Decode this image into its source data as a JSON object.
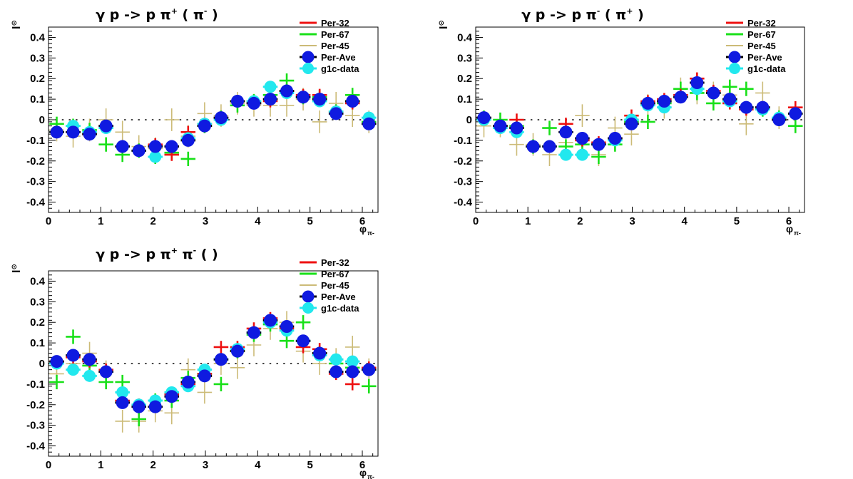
{
  "colors": {
    "per32": "#ee1010",
    "per67": "#18e018",
    "per45": "#ccbb77",
    "perAve": "#0f1ae0",
    "g1c": "#22e8ee"
  },
  "legend": [
    "Per-32",
    "Per-67",
    "Per-45",
    "Per-Ave",
    "g1c-data"
  ],
  "chart_data": [
    {
      "type": "scatter",
      "title_main": "γ p -> p π",
      "title_sup1": "+",
      "title_rest": " ( π",
      "title_sup2": "-",
      "title_end": " )",
      "title_full": "γ p -> p π+ ( π- )",
      "ylabel": "I",
      "ylabel_sup": "⊙",
      "xlabel": "φ",
      "xlabel_sub": "π-",
      "xlim": [
        0,
        6.3
      ],
      "ylim": [
        -0.45,
        0.45
      ],
      "xticks": [
        "0",
        "1",
        "2",
        "3",
        "4",
        "5",
        "6"
      ],
      "yticks": [
        "0.4",
        "0.3",
        "0.2",
        "0.1",
        "0",
        "-0.1",
        "-0.2",
        "-0.3",
        "-0.4"
      ],
      "x": [
        0.157,
        0.471,
        0.785,
        1.1,
        1.414,
        1.728,
        2.042,
        2.356,
        2.67,
        2.985,
        3.299,
        3.613,
        3.927,
        4.241,
        4.555,
        4.869,
        5.184,
        5.498,
        5.812,
        6.126
      ],
      "series": {
        "per32": [
          -0.06,
          -0.06,
          -0.07,
          -0.03,
          -0.13,
          -0.15,
          -0.12,
          -0.17,
          -0.06,
          -0.02,
          0.01,
          0.09,
          0.08,
          0.09,
          0.14,
          0.12,
          0.12,
          0.04,
          0.08,
          -0.02
        ],
        "per67": [
          -0.02,
          -0.03,
          -0.05,
          -0.12,
          -0.17,
          -0.15,
          -0.18,
          -0.16,
          -0.19,
          -0.03,
          0.01,
          0.07,
          0.09,
          0.12,
          0.19,
          0.11,
          0.11,
          0.04,
          0.12,
          -0.01
        ],
        "per45": [
          -0.05,
          -0.08,
          -0.05,
          0.0,
          -0.06,
          -0.13,
          -0.14,
          0.0,
          -0.08,
          0.03,
          0.02,
          0.08,
          0.07,
          0.07,
          0.07,
          0.1,
          -0.01,
          0.08,
          0.02,
          -0.01
        ],
        "perAve": [
          -0.06,
          -0.06,
          -0.07,
          -0.03,
          -0.13,
          -0.15,
          -0.13,
          -0.13,
          -0.1,
          -0.03,
          0.01,
          0.09,
          0.08,
          0.1,
          0.14,
          0.11,
          0.1,
          0.03,
          0.09,
          -0.02
        ],
        "g1c": [
          -0.06,
          -0.03,
          -0.06,
          -0.04,
          -0.13,
          -0.15,
          -0.18,
          -0.13,
          -0.09,
          -0.02,
          0.0,
          0.09,
          0.09,
          0.16,
          0.13,
          0.11,
          0.09,
          0.04,
          0.09,
          0.01
        ]
      }
    },
    {
      "type": "scatter",
      "title_main": "γ p -> p π",
      "title_sup1": "-",
      "title_rest": " ( π",
      "title_sup2": "+",
      "title_end": " )",
      "title_full": "γ p -> p π- ( π+ )",
      "ylabel": "I",
      "ylabel_sup": "⊙",
      "xlabel": "φ",
      "xlabel_sub": "π-",
      "xlim": [
        0,
        6.3
      ],
      "ylim": [
        -0.45,
        0.45
      ],
      "xticks": [
        "0",
        "1",
        "2",
        "3",
        "4",
        "5",
        "6"
      ],
      "yticks": [
        "0.4",
        "0.3",
        "0.2",
        "0.1",
        "0",
        "-0.1",
        "-0.2",
        "-0.3",
        "-0.4"
      ],
      "x": [
        0.157,
        0.471,
        0.785,
        1.1,
        1.414,
        1.728,
        2.042,
        2.356,
        2.67,
        2.985,
        3.299,
        3.613,
        3.927,
        4.241,
        4.555,
        4.869,
        5.184,
        5.498,
        5.812,
        6.126
      ],
      "series": {
        "per32": [
          0.01,
          -0.03,
          0.0,
          -0.13,
          -0.13,
          -0.02,
          -0.1,
          -0.11,
          -0.09,
          0.02,
          0.09,
          0.1,
          0.12,
          0.2,
          0.14,
          0.08,
          0.05,
          0.06,
          0.0,
          0.06
        ],
        "per67": [
          0.01,
          0.0,
          -0.03,
          -0.13,
          -0.04,
          -0.13,
          -0.12,
          -0.18,
          -0.12,
          -0.01,
          -0.01,
          0.08,
          0.15,
          0.13,
          0.08,
          0.16,
          0.15,
          0.05,
          0.01,
          -0.03
        ],
        "per45": [
          -0.03,
          -0.03,
          -0.12,
          -0.12,
          -0.17,
          -0.11,
          0.02,
          -0.17,
          -0.04,
          -0.07,
          0.07,
          0.06,
          0.15,
          0.13,
          0.13,
          0.12,
          -0.02,
          0.13,
          0.01,
          0.03
        ],
        "perAve": [
          0.01,
          -0.03,
          -0.04,
          -0.13,
          -0.13,
          -0.06,
          -0.09,
          -0.12,
          -0.09,
          -0.02,
          0.08,
          0.09,
          0.11,
          0.18,
          0.13,
          0.1,
          0.06,
          0.06,
          0.0,
          0.03
        ],
        "g1c": [
          0.0,
          -0.04,
          -0.06,
          -0.13,
          -0.13,
          -0.17,
          -0.17,
          -0.12,
          -0.1,
          0.0,
          0.07,
          0.06,
          0.11,
          0.15,
          0.13,
          0.09,
          0.06,
          0.05,
          0.01,
          0.03
        ]
      }
    },
    {
      "type": "scatter",
      "title_main": "γ p -> p π",
      "title_sup1": "+",
      "title_rest": " π",
      "title_sup2": "-",
      "title_end": " ( )",
      "title_full": "γ p -> p π+ π- ( )",
      "ylabel": "I",
      "ylabel_sup": "⊙",
      "xlabel": "φ",
      "xlabel_sub": "π-",
      "xlim": [
        0,
        6.3
      ],
      "ylim": [
        -0.45,
        0.45
      ],
      "xticks": [
        "0",
        "1",
        "2",
        "3",
        "4",
        "5",
        "6"
      ],
      "yticks": [
        "0.4",
        "0.3",
        "0.2",
        "0.1",
        "0",
        "-0.1",
        "-0.2",
        "-0.3",
        "-0.4"
      ],
      "x": [
        0.157,
        0.471,
        0.785,
        1.1,
        1.414,
        1.728,
        2.042,
        2.356,
        2.67,
        2.985,
        3.299,
        3.613,
        3.927,
        4.241,
        4.555,
        4.869,
        5.184,
        5.498,
        5.812,
        6.126
      ],
      "series": {
        "per32": [
          0.01,
          0.03,
          0.01,
          -0.03,
          -0.18,
          -0.2,
          -0.21,
          -0.15,
          -0.1,
          -0.05,
          0.08,
          0.08,
          0.17,
          0.22,
          0.17,
          0.08,
          0.07,
          -0.05,
          -0.1,
          -0.02
        ],
        "per67": [
          -0.09,
          0.13,
          -0.01,
          -0.09,
          -0.09,
          -0.27,
          -0.18,
          -0.18,
          -0.07,
          -0.05,
          -0.1,
          0.06,
          0.14,
          0.19,
          0.11,
          0.2,
          0.05,
          0.0,
          -0.02,
          -0.11
        ],
        "per45": [
          -0.05,
          0.0,
          0.05,
          -0.04,
          -0.28,
          -0.28,
          -0.23,
          -0.24,
          -0.03,
          -0.14,
          0.0,
          -0.02,
          0.09,
          0.17,
          0.2,
          0.06,
          0.0,
          0.02,
          0.08,
          -0.03
        ],
        "perAve": [
          0.01,
          0.04,
          0.02,
          -0.04,
          -0.19,
          -0.21,
          -0.21,
          -0.16,
          -0.09,
          -0.06,
          0.02,
          0.06,
          0.15,
          0.21,
          0.18,
          0.11,
          0.05,
          -0.04,
          -0.04,
          -0.03
        ],
        "g1c": [
          0.0,
          -0.03,
          -0.06,
          -0.04,
          -0.14,
          -0.2,
          -0.18,
          -0.14,
          -0.11,
          -0.03,
          0.02,
          0.07,
          0.15,
          0.2,
          0.16,
          0.11,
          0.04,
          0.02,
          0.01,
          -0.03
        ]
      }
    }
  ]
}
